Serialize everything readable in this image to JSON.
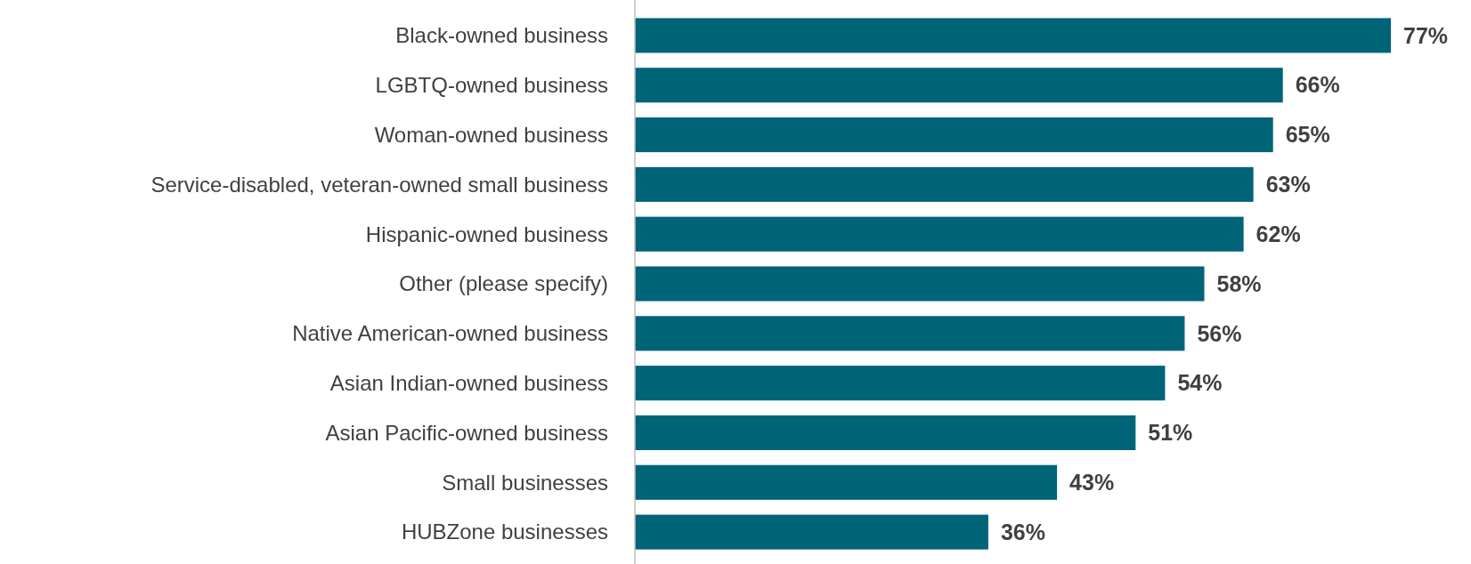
{
  "chart_data": {
    "type": "bar",
    "orientation": "horizontal",
    "color": "#006478",
    "value_labels": [
      "77%",
      "66%",
      "65%",
      "63%",
      "62%",
      "58%",
      "56%",
      "54%",
      "51%",
      "43%",
      "36%"
    ],
    "categories": [
      "Black-owned business",
      "LGBTQ-owned business",
      "Woman-owned business",
      "Service-disabled, veteran-owned small business",
      "Hispanic-owned business",
      "Other (please specify)",
      "Native American-owned business",
      "Asian Indian-owned business",
      "Asian Pacific-owned business",
      "Small businesses",
      "HUBZone businesses"
    ],
    "values": [
      77,
      66,
      65,
      63,
      62,
      58,
      56,
      54,
      51,
      43,
      36
    ]
  }
}
